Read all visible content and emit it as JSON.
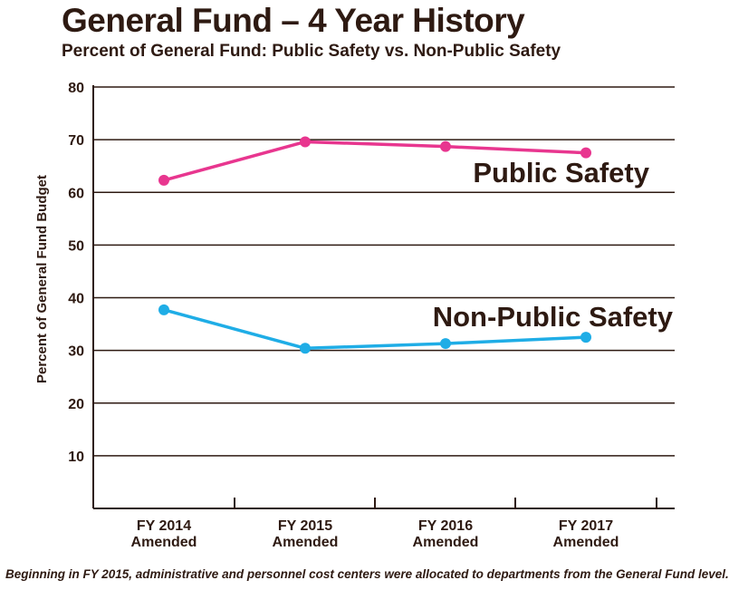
{
  "chart_data": {
    "type": "line",
    "title": "General Fund – 4 Year History",
    "subtitle": "Percent of General Fund: Public Safety vs. Non-Public Safety",
    "ylabel": "Percent of General Fund Budget",
    "xlabel": "",
    "ylim": [
      0,
      80
    ],
    "yticks": [
      10,
      20,
      30,
      40,
      50,
      60,
      70,
      80
    ],
    "categories": [
      [
        "FY 2014",
        "Amended"
      ],
      [
        "FY 2015",
        "Amended"
      ],
      [
        "FY 2016",
        "Amended"
      ],
      [
        "FY 2017",
        "Amended"
      ]
    ],
    "grid": true,
    "series": [
      {
        "name": "Public Safety",
        "color": "#e8368f",
        "values": [
          62.3,
          69.6,
          68.7,
          67.5
        ]
      },
      {
        "name": "Non-Public Safety",
        "color": "#1fade6",
        "values": [
          37.7,
          30.4,
          31.3,
          32.5
        ]
      }
    ],
    "footnote": "Beginning in FY 2015, administrative and personnel cost centers were allocated to departments from the General Fund level."
  }
}
